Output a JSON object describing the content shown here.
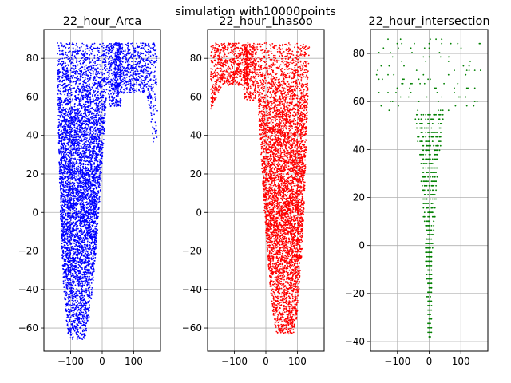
{
  "figure": {
    "suptitle": "simulation with10000points"
  },
  "chart_data": [
    {
      "type": "scatter",
      "title": "22_hour_Arca",
      "color": "#0000ff",
      "xlim": [
        -185,
        185
      ],
      "ylim": [
        -72,
        95
      ],
      "xticks": [
        -100,
        0,
        100
      ],
      "yticks": [
        -60,
        -40,
        -20,
        0,
        20,
        40,
        60,
        80
      ],
      "grid": true,
      "shape": {
        "description": "dense cloud; left group x∈[-170,40] y∈[-66,88]; right lobe x∈[40,175] y∈[35,88]",
        "core_center": [
          -75,
          25
        ],
        "y_min": -66,
        "y_max": 88,
        "x_min": -170,
        "x_max": 175
      }
    },
    {
      "type": "scatter",
      "title": "22_hour_Lhasoo",
      "color": "#ff0000",
      "xlim": [
        -185,
        185
      ],
      "ylim": [
        -72,
        95
      ],
      "xticks": [
        -100,
        0,
        100
      ],
      "yticks": [
        -60,
        -40,
        -20,
        0,
        20,
        40,
        60,
        80
      ],
      "grid": true,
      "shape": {
        "description": "dense cloud; main group x∈[-60,175] y∈[-63,88]; left lobe x∈[-175,-60] y∈[52,88]",
        "core_center": [
          65,
          20
        ],
        "y_min": -63,
        "y_max": 88,
        "x_min": -175,
        "x_max": 175
      }
    },
    {
      "type": "scatter",
      "title": "22_hour_intersection",
      "color": "#008000",
      "xlim": [
        -185,
        185
      ],
      "ylim": [
        -44,
        90
      ],
      "xticks": [
        -100,
        0,
        100
      ],
      "yticks": [
        -40,
        -20,
        0,
        20,
        40,
        60,
        80
      ],
      "grid": true,
      "shape": {
        "description": "sparse grid of points forming a funnel narrowing downward; y quantized in steps of ~1.8",
        "core_center": [
          0,
          20
        ],
        "y_min": -38,
        "y_max": 86,
        "x_min": -175,
        "x_max": 175
      }
    }
  ]
}
